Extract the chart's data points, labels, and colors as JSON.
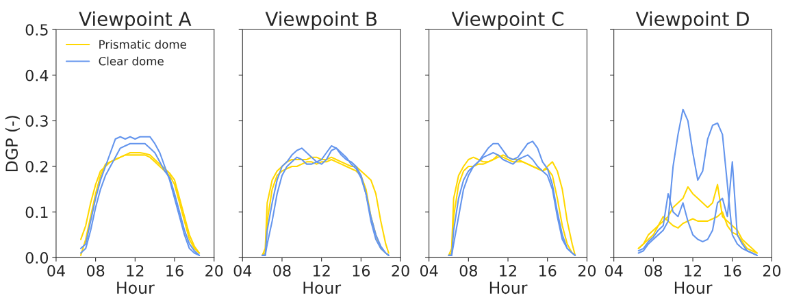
{
  "chart_data": [
    {
      "type": "line",
      "title": "Viewpoint A",
      "xlabel": "Hour",
      "ylabel": "DGP (-)",
      "legend": "top left",
      "grid": false,
      "xlim": [
        4,
        20
      ],
      "xticks": [
        {
          "value": 4,
          "label": "04"
        },
        {
          "value": 8,
          "label": "08"
        },
        {
          "value": 12,
          "label": "12"
        },
        {
          "value": 16,
          "label": "16"
        },
        {
          "value": 20,
          "label": "20"
        }
      ],
      "ylim": [
        0,
        0.5
      ],
      "yticks": [
        {
          "value": 0,
          "label": "0.0"
        },
        {
          "value": 0.1,
          "label": "0.1"
        },
        {
          "value": 0.2,
          "label": "0.2"
        },
        {
          "value": 0.3,
          "label": "0.3"
        },
        {
          "value": 0.4,
          "label": "0.4"
        },
        {
          "value": 0.5,
          "label": "0.5"
        }
      ],
      "x": [
        6.5,
        7,
        7.5,
        8,
        8.5,
        9,
        9.5,
        10,
        10.5,
        11,
        11.5,
        12,
        12.5,
        13,
        13.5,
        14,
        14.5,
        15,
        15.5,
        16,
        16.5,
        17,
        17.5,
        18,
        18.5
      ],
      "series": [
        {
          "name": "Prismatic dome",
          "color": "#ffd700",
          "values": [
            0.04,
            0.07,
            0.12,
            0.16,
            0.19,
            0.2,
            0.21,
            0.215,
            0.22,
            0.225,
            0.23,
            0.23,
            0.23,
            0.228,
            0.225,
            0.215,
            0.205,
            0.195,
            0.185,
            0.17,
            0.13,
            0.09,
            0.05,
            0.025,
            0.01
          ]
        },
        {
          "color": "#ffd700",
          "values": [
            0.005,
            0.04,
            0.09,
            0.14,
            0.18,
            0.205,
            0.21,
            0.215,
            0.22,
            0.225,
            0.225,
            0.225,
            0.225,
            0.225,
            0.22,
            0.21,
            0.2,
            0.19,
            0.18,
            0.16,
            0.12,
            0.08,
            0.04,
            0.02,
            0.01
          ]
        },
        {
          "name": "Clear dome",
          "color": "#6495ed",
          "values": [
            0.02,
            0.03,
            0.08,
            0.13,
            0.17,
            0.2,
            0.23,
            0.26,
            0.265,
            0.26,
            0.265,
            0.26,
            0.265,
            0.265,
            0.265,
            0.25,
            0.23,
            0.2,
            0.17,
            0.13,
            0.09,
            0.05,
            0.02,
            0.01,
            0.005
          ]
        },
        {
          "color": "#6495ed",
          "values": [
            0.01,
            0.02,
            0.06,
            0.11,
            0.15,
            0.18,
            0.2,
            0.22,
            0.24,
            0.245,
            0.25,
            0.25,
            0.25,
            0.25,
            0.24,
            0.23,
            0.21,
            0.19,
            0.175,
            0.14,
            0.1,
            0.06,
            0.03,
            0.015,
            0.005
          ]
        }
      ]
    },
    {
      "type": "line",
      "title": "Viewpoint B",
      "xlabel": "Hour",
      "tick_labels": "x",
      "grid": false,
      "xlim": [
        4,
        20
      ],
      "xticks": [
        {
          "value": 4,
          "label": "04"
        },
        {
          "value": 8,
          "label": "08"
        },
        {
          "value": 12,
          "label": "12"
        },
        {
          "value": 16,
          "label": "16"
        },
        {
          "value": 20,
          "label": "20"
        }
      ],
      "ylim": [
        0,
        0.5
      ],
      "yticks": [
        {
          "value": 0,
          "label": null
        },
        {
          "value": 0.1,
          "label": null
        },
        {
          "value": 0.2,
          "label": null
        },
        {
          "value": 0.3,
          "label": null
        },
        {
          "value": 0.4,
          "label": null
        },
        {
          "value": 0.5,
          "label": null
        }
      ],
      "x": [
        6.0,
        6.3,
        6.5,
        7,
        7.5,
        8,
        8.5,
        9,
        9.5,
        10,
        10.5,
        11,
        11.5,
        12,
        12.5,
        13,
        13.5,
        14,
        14.5,
        15,
        15.5,
        16,
        16.5,
        17,
        17.5,
        18,
        18.5,
        18.8
      ],
      "series": [
        {
          "color": "#ffd700",
          "values": [
            0.005,
            0.02,
            0.12,
            0.17,
            0.19,
            0.2,
            0.21,
            0.215,
            0.215,
            0.215,
            0.215,
            0.22,
            0.22,
            0.215,
            0.215,
            0.22,
            0.215,
            0.21,
            0.205,
            0.2,
            0.2,
            0.19,
            0.18,
            0.17,
            0.14,
            0.08,
            0.03,
            0.01
          ]
        },
        {
          "color": "#ffd700",
          "values": [
            0.005,
            0.01,
            0.08,
            0.15,
            0.18,
            0.19,
            0.195,
            0.2,
            0.2,
            0.205,
            0.21,
            0.21,
            0.205,
            0.21,
            0.21,
            0.215,
            0.21,
            0.205,
            0.2,
            0.195,
            0.19,
            0.18,
            0.15,
            0.09,
            0.05,
            0.02,
            0.01,
            0.005
          ]
        },
        {
          "color": "#6495ed",
          "values": [
            0.005,
            0.005,
            0.06,
            0.12,
            0.17,
            0.2,
            0.21,
            0.225,
            0.235,
            0.24,
            0.23,
            0.22,
            0.21,
            0.215,
            0.23,
            0.245,
            0.24,
            0.225,
            0.215,
            0.21,
            0.2,
            0.18,
            0.14,
            0.08,
            0.04,
            0.02,
            0.01,
            0.005
          ]
        },
        {
          "color": "#6495ed",
          "values": [
            0.005,
            0.005,
            0.03,
            0.08,
            0.14,
            0.18,
            0.2,
            0.21,
            0.22,
            0.215,
            0.205,
            0.205,
            0.21,
            0.205,
            0.215,
            0.235,
            0.24,
            0.23,
            0.22,
            0.205,
            0.195,
            0.175,
            0.14,
            0.09,
            0.05,
            0.025,
            0.01,
            0.005
          ]
        }
      ]
    },
    {
      "type": "line",
      "title": "Viewpoint C",
      "xlabel": "Hour",
      "tick_labels": "x",
      "grid": false,
      "xlim": [
        4,
        20
      ],
      "xticks": [
        {
          "value": 4,
          "label": "04"
        },
        {
          "value": 8,
          "label": "08"
        },
        {
          "value": 12,
          "label": "12"
        },
        {
          "value": 16,
          "label": "16"
        },
        {
          "value": 20,
          "label": "20"
        }
      ],
      "ylim": [
        0,
        0.5
      ],
      "yticks": [
        {
          "value": 0,
          "label": null
        },
        {
          "value": 0.1,
          "label": null
        },
        {
          "value": 0.2,
          "label": null
        },
        {
          "value": 0.3,
          "label": null
        },
        {
          "value": 0.4,
          "label": null
        },
        {
          "value": 0.5,
          "label": null
        }
      ],
      "x": [
        6.0,
        6.3,
        6.5,
        7,
        7.5,
        8,
        8.5,
        9,
        9.5,
        10,
        10.5,
        11,
        11.5,
        12,
        12.5,
        13,
        13.5,
        14,
        14.5,
        15,
        15.5,
        16,
        16.5,
        17,
        17.5,
        18,
        18.5,
        18.8
      ],
      "series": [
        {
          "color": "#ffd700",
          "values": [
            0.005,
            0.02,
            0.13,
            0.18,
            0.2,
            0.215,
            0.22,
            0.215,
            0.21,
            0.21,
            0.215,
            0.22,
            0.225,
            0.22,
            0.215,
            0.215,
            0.21,
            0.205,
            0.2,
            0.195,
            0.19,
            0.2,
            0.21,
            0.19,
            0.15,
            0.08,
            0.03,
            0.005
          ]
        },
        {
          "color": "#ffd700",
          "values": [
            0.005,
            0.01,
            0.09,
            0.16,
            0.19,
            0.2,
            0.2,
            0.205,
            0.205,
            0.21,
            0.215,
            0.225,
            0.22,
            0.215,
            0.21,
            0.21,
            0.21,
            0.205,
            0.2,
            0.195,
            0.19,
            0.195,
            0.18,
            0.13,
            0.07,
            0.03,
            0.01,
            0.005
          ]
        },
        {
          "color": "#6495ed",
          "values": [
            0.005,
            0.005,
            0.06,
            0.13,
            0.17,
            0.19,
            0.2,
            0.21,
            0.225,
            0.24,
            0.25,
            0.25,
            0.235,
            0.22,
            0.215,
            0.22,
            0.235,
            0.25,
            0.255,
            0.24,
            0.21,
            0.195,
            0.16,
            0.1,
            0.05,
            0.02,
            0.01,
            0.005
          ]
        },
        {
          "color": "#6495ed",
          "values": [
            0.005,
            0.005,
            0.03,
            0.09,
            0.15,
            0.18,
            0.2,
            0.21,
            0.22,
            0.225,
            0.23,
            0.225,
            0.215,
            0.21,
            0.205,
            0.215,
            0.22,
            0.225,
            0.215,
            0.2,
            0.19,
            0.18,
            0.15,
            0.09,
            0.04,
            0.02,
            0.01,
            0.005
          ]
        }
      ]
    },
    {
      "type": "line",
      "title": "Viewpoint D",
      "xlabel": "Hour",
      "tick_labels": "x",
      "grid": false,
      "xlim": [
        4,
        20
      ],
      "xticks": [
        {
          "value": 4,
          "label": "04"
        },
        {
          "value": 8,
          "label": "08"
        },
        {
          "value": 12,
          "label": "12"
        },
        {
          "value": 16,
          "label": "16"
        },
        {
          "value": 20,
          "label": "20"
        }
      ],
      "ylim": [
        0,
        0.5
      ],
      "yticks": [
        {
          "value": 0,
          "label": null
        },
        {
          "value": 0.1,
          "label": null
        },
        {
          "value": 0.2,
          "label": null
        },
        {
          "value": 0.3,
          "label": null
        },
        {
          "value": 0.4,
          "label": null
        },
        {
          "value": 0.5,
          "label": null
        }
      ],
      "x": [
        6.5,
        7,
        7.5,
        8,
        8.5,
        9,
        9.5,
        10,
        10.5,
        11,
        11.5,
        12,
        12.5,
        13,
        13.5,
        14,
        14.5,
        15,
        15.5,
        16,
        16.5,
        17,
        17.5,
        18,
        18.5
      ],
      "series": [
        {
          "color": "#ffd700",
          "values": [
            0.02,
            0.03,
            0.05,
            0.06,
            0.07,
            0.08,
            0.09,
            0.11,
            0.12,
            0.13,
            0.155,
            0.14,
            0.13,
            0.12,
            0.11,
            0.12,
            0.16,
            0.09,
            0.08,
            0.07,
            0.06,
            0.04,
            0.03,
            0.02,
            0.01
          ]
        },
        {
          "color": "#ffd700",
          "values": [
            0.02,
            0.03,
            0.04,
            0.05,
            0.07,
            0.09,
            0.08,
            0.07,
            0.065,
            0.075,
            0.08,
            0.085,
            0.08,
            0.08,
            0.08,
            0.085,
            0.09,
            0.1,
            0.07,
            0.055,
            0.05,
            0.035,
            0.02,
            0.015,
            0.01
          ]
        },
        {
          "color": "#6495ed",
          "values": [
            0.01,
            0.015,
            0.03,
            0.04,
            0.05,
            0.06,
            0.08,
            0.2,
            0.27,
            0.325,
            0.3,
            0.23,
            0.17,
            0.19,
            0.26,
            0.29,
            0.295,
            0.27,
            0.16,
            0.05,
            0.03,
            0.02,
            0.015,
            0.01,
            0.005
          ]
        },
        {
          "color": "#6495ed",
          "values": [
            0.015,
            0.02,
            0.035,
            0.045,
            0.06,
            0.07,
            0.14,
            0.1,
            0.09,
            0.12,
            0.08,
            0.05,
            0.04,
            0.035,
            0.04,
            0.06,
            0.12,
            0.13,
            0.09,
            0.21,
            0.05,
            0.03,
            0.015,
            0.01,
            0.005
          ]
        }
      ]
    }
  ]
}
